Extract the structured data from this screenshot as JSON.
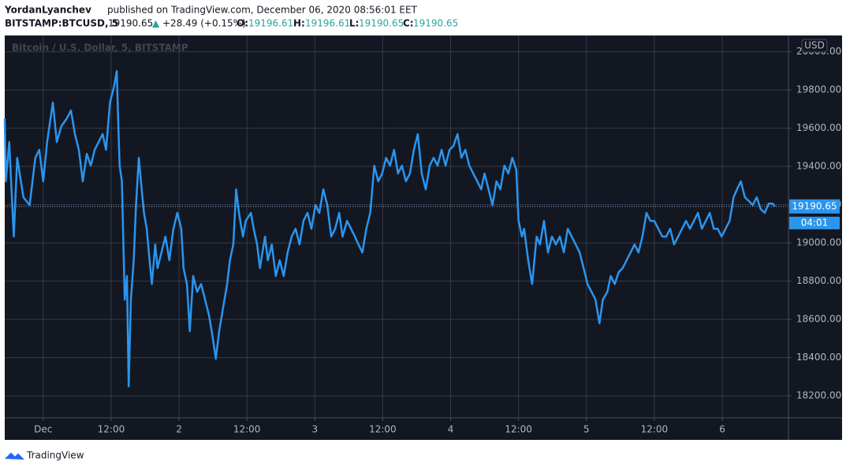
{
  "header": {
    "author": "YordanLyanchev",
    "published": "published on TradingView.com, December 06, 2020 08:56:01 EET",
    "symbol": "BITSTAMP:BTCUSD, 5",
    "last": "19190.65",
    "arrow": "▲",
    "change": "+28.49 (+0.15%)",
    "o_label": "O:",
    "o": "19196.61",
    "h_label": "H:",
    "h": "19196.61",
    "l_label": "L:",
    "l": "19190.65",
    "c_label": "C:",
    "c": "19190.65"
  },
  "footer": {
    "brand": "TradingView"
  },
  "chart_data": {
    "type": "line",
    "watermark": "Bitcoin / U.S. Dollar, 5, BITSTAMP",
    "currency": "USD",
    "countdown": "04:01",
    "grid": true,
    "x": [
      -6.8,
      -6.6,
      -6.0,
      -5.2,
      -4.6,
      -3.5,
      -2.4,
      -1.4,
      -0.7,
      0,
      0.7,
      1.7,
      2.4,
      3.2,
      4.2,
      4.9,
      5.6,
      6.3,
      7.0,
      7.7,
      8.4,
      9.1,
      9.8,
      10.5,
      11.1,
      11.8,
      12.5,
      13.0,
      13.2,
      13.5,
      13.9,
      14.4,
      14.8,
      15.1,
      15.5,
      16.0,
      16.4,
      16.9,
      17.4,
      17.8,
      18.3,
      18.8,
      19.2,
      19.8,
      20.2,
      20.9,
      21.6,
      22.3,
      23.0,
      23.7,
      24.4,
      24.8,
      25.4,
      25.9,
      26.5,
      27.2,
      27.9,
      28.6,
      29.3,
      30.0,
      30.5,
      31.1,
      31.8,
      32.5,
      33.0,
      33.6,
      34.1,
      34.6,
      35.3,
      35.8,
      36.7,
      37.2,
      37.8,
      38.3,
      39.2,
      39.7,
      40.4,
      41.1,
      41.8,
      42.5,
      43.2,
      43.9,
      44.6,
      45.3,
      46.0,
      46.7,
      47.4,
      48.1,
      48.8,
      49.5,
      50.2,
      50.9,
      51.6,
      52.3,
      52.9,
      53.7,
      54.4,
      55.1,
      55.7,
      56.4,
      57.1,
      57.8,
      58.5,
      59.2,
      59.9,
      60.6,
      61.3,
      62.0,
      62.7,
      63.4,
      64.1,
      64.8,
      65.5,
      66.2,
      66.9,
      67.6,
      68.3,
      69.0,
      69.7,
      70.4,
      71.1,
      71.8,
      72.5,
      73.2,
      73.9,
      74.6,
      75.3,
      76.0,
      76.7,
      77.4,
      78.0,
      78.7,
      79.4,
      80.1,
      80.8,
      81.5,
      82.2,
      82.9,
      83.6,
      84.0,
      84.6,
      85.0,
      85.7,
      86.4,
      87.2,
      87.8,
      88.5,
      89.2,
      89.9,
      90.6,
      91.3,
      92.0,
      92.7,
      93.4,
      94.1,
      94.8,
      95.5,
      96.2,
      96.9,
      97.6,
      98.3,
      98.9,
      99.7,
      100.3,
      101.0,
      101.7,
      102.4,
      103.1,
      103.8,
      104.5,
      105.2,
      105.9,
      106.6,
      107.3,
      108.0,
      108.7,
      109.4,
      110.1,
      110.8,
      111.5,
      112.2,
      112.9,
      113.6,
      114.3,
      115.0,
      115.7,
      116.4,
      117.1,
      117.8,
      118.5,
      119.2,
      119.9,
      120.6,
      121.3,
      122.0,
      122.6,
      123.3,
      124.0,
      124.7,
      125.4,
      126.1,
      126.8,
      127.5,
      128.2,
      128.9,
      129.3
    ],
    "series": [
      {
        "name": "BTCUSD",
        "color": "#2a95ee",
        "values": [
          19652,
          19322,
          19528,
          19033,
          19445,
          19239,
          19198,
          19445,
          19487,
          19322,
          19528,
          19734,
          19528,
          19610,
          19652,
          19693,
          19569,
          19487,
          19322,
          19466,
          19404,
          19487,
          19528,
          19569,
          19487,
          19734,
          19816,
          19899,
          19693,
          19404,
          19322,
          18703,
          18827,
          18249,
          18703,
          18909,
          19198,
          19445,
          19280,
          19157,
          19074,
          18909,
          18785,
          18992,
          18868,
          18950,
          19033,
          18909,
          19074,
          19157,
          19074,
          18868,
          18785,
          18538,
          18827,
          18744,
          18785,
          18703,
          18621,
          18497,
          18394,
          18538,
          18662,
          18785,
          18909,
          18992,
          19280,
          19157,
          19033,
          19115,
          19157,
          19074,
          18992,
          18868,
          19033,
          18909,
          18992,
          18827,
          18909,
          18827,
          18950,
          19033,
          19074,
          18992,
          19115,
          19157,
          19074,
          19198,
          19157,
          19280,
          19198,
          19033,
          19074,
          19157,
          19033,
          19115,
          19074,
          19033,
          18992,
          18950,
          19074,
          19157,
          19404,
          19322,
          19363,
          19445,
          19404,
          19487,
          19363,
          19404,
          19322,
          19363,
          19487,
          19569,
          19363,
          19280,
          19404,
          19445,
          19404,
          19487,
          19404,
          19487,
          19507,
          19569,
          19445,
          19487,
          19404,
          19363,
          19322,
          19280,
          19363,
          19280,
          19198,
          19322,
          19280,
          19404,
          19363,
          19445,
          19383,
          19115,
          19033,
          19074,
          18909,
          18785,
          19033,
          18992,
          19115,
          18950,
          19033,
          18992,
          19033,
          18950,
          19074,
          19033,
          18992,
          18950,
          18868,
          18785,
          18744,
          18703,
          18579,
          18703,
          18744,
          18827,
          18785,
          18847,
          18868,
          18909,
          18950,
          18992,
          18950,
          19033,
          19157,
          19115,
          19115,
          19074,
          19033,
          19033,
          19074,
          18992,
          19033,
          19074,
          19115,
          19074,
          19115,
          19157,
          19074,
          19115,
          19157,
          19074,
          19074,
          19033,
          19074,
          19115,
          19239,
          19280,
          19322,
          19239,
          19219,
          19198,
          19239,
          19177,
          19157,
          19206,
          19206,
          19190.65
        ]
      }
    ],
    "xlim": [
      -6.8,
      131.7
    ],
    "xticks": [
      {
        "value": 0,
        "label": "Dec"
      },
      {
        "value": 12,
        "label": "12:00"
      },
      {
        "value": 24,
        "label": "2"
      },
      {
        "value": 36,
        "label": "12:00"
      },
      {
        "value": 48,
        "label": "3"
      },
      {
        "value": 60,
        "label": "12:00"
      },
      {
        "value": 72,
        "label": "4"
      },
      {
        "value": 84,
        "label": "12:00"
      },
      {
        "value": 96,
        "label": "5"
      },
      {
        "value": 108,
        "label": "12:00"
      },
      {
        "value": 120,
        "label": "6"
      }
    ],
    "ylim": [
      18085,
      20085
    ],
    "yticks": [
      {
        "value": 18200,
        "label": "18200.00"
      },
      {
        "value": 18400,
        "label": "18400.00"
      },
      {
        "value": 18600,
        "label": "18600.00"
      },
      {
        "value": 18800,
        "label": "18800.00"
      },
      {
        "value": 19000,
        "label": "19000.00"
      },
      {
        "value": 19200,
        "label": "19200.00"
      },
      {
        "value": 19400,
        "label": "19400.00"
      },
      {
        "value": 19600,
        "label": "19600.00"
      },
      {
        "value": 19800,
        "label": "19800.00"
      },
      {
        "value": 20000,
        "label": "20000.00"
      }
    ]
  }
}
